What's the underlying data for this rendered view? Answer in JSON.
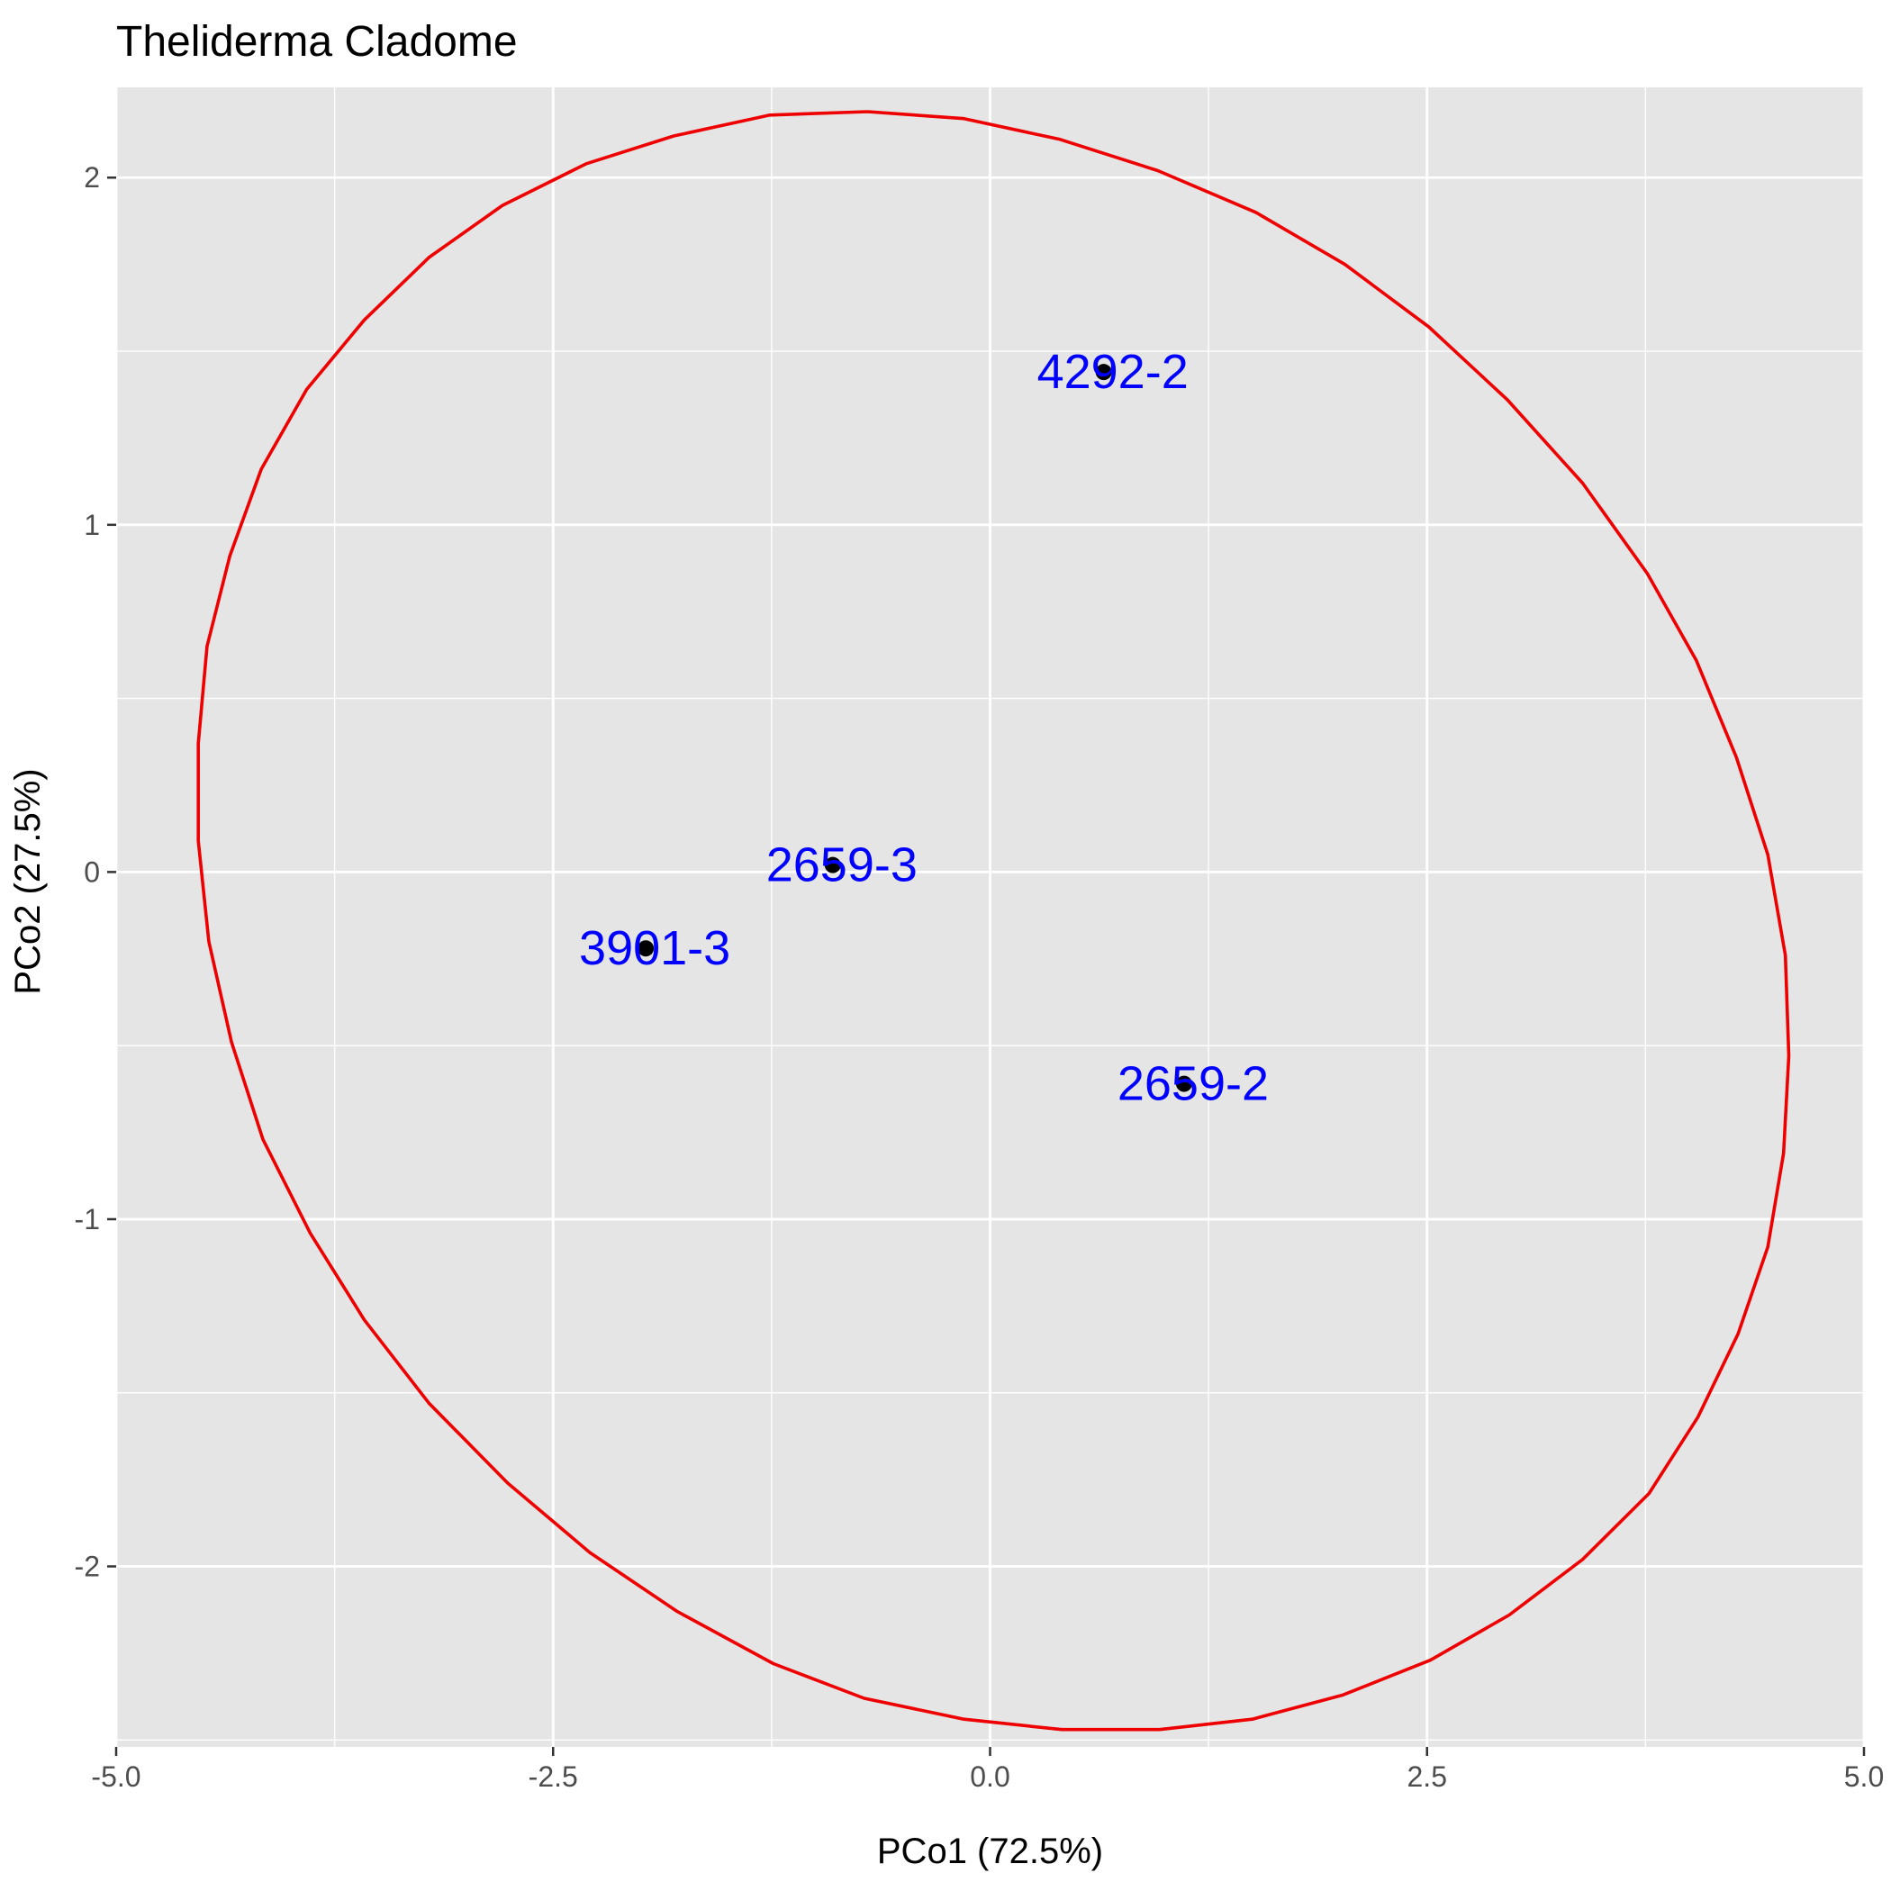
{
  "chart_data": {
    "type": "scatter",
    "title": "Theliderma Cladome",
    "xlabel": "PCo1 (72.5%)",
    "ylabel": "PCo2 (27.5%)",
    "xlim": [
      -5.0,
      5.0
    ],
    "ylim": [
      -2.52,
      2.26
    ],
    "x_ticks": [
      -5.0,
      -2.5,
      0.0,
      2.5,
      5.0
    ],
    "x_tick_labels": [
      "-5.0",
      "-2.5",
      "0.0",
      "2.5",
      "5.0"
    ],
    "y_ticks": [
      -2,
      -1,
      0,
      1,
      2
    ],
    "y_tick_labels": [
      "-2",
      "-1",
      "0",
      "1",
      "2"
    ],
    "grid": true,
    "legend": "none",
    "points": [
      {
        "label": "4292-2",
        "x": 0.65,
        "y": 1.44
      },
      {
        "label": "2659-3",
        "x": -0.9,
        "y": 0.02
      },
      {
        "label": "3901-3",
        "x": -1.97,
        "y": -0.22
      },
      {
        "label": "2659-2",
        "x": 1.11,
        "y": -0.61
      }
    ],
    "ellipse": [
      [
        -0.7,
        2.19
      ],
      [
        -0.15,
        2.17
      ],
      [
        0.4,
        2.11
      ],
      [
        0.96,
        2.02
      ],
      [
        1.52,
        1.9
      ],
      [
        2.03,
        1.75
      ],
      [
        2.51,
        1.57
      ],
      [
        2.96,
        1.36
      ],
      [
        3.39,
        1.12
      ],
      [
        3.76,
        0.86
      ],
      [
        4.04,
        0.61
      ],
      [
        4.27,
        0.33
      ],
      [
        4.45,
        0.05
      ],
      [
        4.55,
        -0.24
      ],
      [
        4.57,
        -0.53
      ],
      [
        4.54,
        -0.81
      ],
      [
        4.45,
        -1.08
      ],
      [
        4.28,
        -1.33
      ],
      [
        4.05,
        -1.57
      ],
      [
        3.77,
        -1.79
      ],
      [
        3.39,
        -1.98
      ],
      [
        2.97,
        -2.14
      ],
      [
        2.52,
        -2.27
      ],
      [
        2.02,
        -2.37
      ],
      [
        1.5,
        -2.44
      ],
      [
        0.97,
        -2.47
      ],
      [
        0.41,
        -2.47
      ],
      [
        -0.15,
        -2.44
      ],
      [
        -0.72,
        -2.38
      ],
      [
        -1.24,
        -2.28
      ],
      [
        -1.79,
        -2.13
      ],
      [
        -2.29,
        -1.96
      ],
      [
        -2.76,
        -1.76
      ],
      [
        -3.21,
        -1.53
      ],
      [
        -3.58,
        -1.29
      ],
      [
        -3.89,
        -1.04
      ],
      [
        -4.16,
        -0.77
      ],
      [
        -4.34,
        -0.49
      ],
      [
        -4.47,
        -0.2
      ],
      [
        -4.53,
        0.09
      ],
      [
        -4.53,
        0.37
      ],
      [
        -4.48,
        0.65
      ],
      [
        -4.35,
        0.91
      ],
      [
        -4.17,
        1.16
      ],
      [
        -3.91,
        1.39
      ],
      [
        -3.58,
        1.59
      ],
      [
        -3.21,
        1.77
      ],
      [
        -2.79,
        1.92
      ],
      [
        -2.31,
        2.04
      ],
      [
        -1.81,
        2.12
      ],
      [
        -1.26,
        2.18
      ],
      [
        -0.7,
        2.19
      ]
    ]
  },
  "colors": {
    "panel_background": "#e5e5e5",
    "grid": "#ffffff",
    "ellipse": "#ee0000",
    "point": "#000000",
    "point_label": "#0000ff",
    "tick_label": "#4d4d4d",
    "tick_mark": "#333333"
  }
}
